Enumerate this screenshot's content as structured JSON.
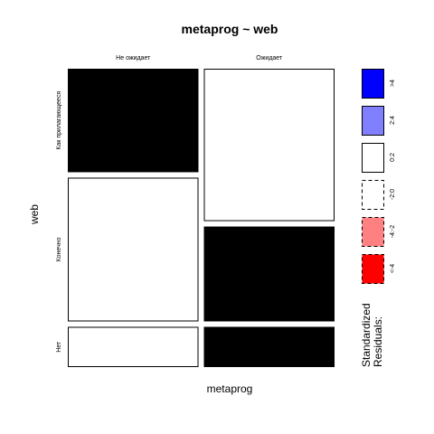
{
  "chart_data": {
    "type": "mosaic",
    "title": "metaprog ~ web",
    "xlabel": "metaprog",
    "ylabel": "web",
    "x_levels": [
      "Не ожидает",
      "Ожидает"
    ],
    "y_levels": [
      "Как прилагающееся",
      "Конечно",
      "Нет"
    ],
    "x_proportions": [
      0.5,
      0.5
    ],
    "cells": [
      {
        "x": "Не ожидает",
        "y": "Как прилагающееся",
        "fraction": 0.36,
        "residual_bin": "<-2:0"
      },
      {
        "x": "Не ожидает",
        "y": "Конечно",
        "fraction": 0.5,
        "residual_bin": "0:2"
      },
      {
        "x": "Не ожидает",
        "y": "Нет",
        "fraction": 0.14,
        "residual_bin": "0:2"
      },
      {
        "x": "Ожидает",
        "y": "Как прилагающееся",
        "fraction": 0.53,
        "residual_bin": "0:2"
      },
      {
        "x": "Ожидает",
        "y": "Конечно",
        "fraction": 0.33,
        "residual_bin": "<-2:0"
      },
      {
        "x": "Ожидает",
        "y": "Нет",
        "fraction": 0.14,
        "residual_bin": "<-2:0"
      }
    ],
    "legend": {
      "title_lines": [
        "Standardized",
        "Residuals:"
      ],
      "placement": "right",
      "bins": [
        {
          "label": ">4",
          "color": "#0000ff",
          "dashed": false
        },
        {
          "label": "2:4",
          "color": "#8080ff",
          "dashed": false
        },
        {
          "label": "0:2",
          "color": "#ffffff",
          "dashed": false
        },
        {
          "label": "-2:0",
          "color": "#ffffff",
          "dashed": true
        },
        {
          "label": "-4:-2",
          "color": "#ff8080",
          "dashed": true
        },
        {
          "label": "<-4",
          "color": "#ff0000",
          "dashed": true
        }
      ]
    }
  }
}
